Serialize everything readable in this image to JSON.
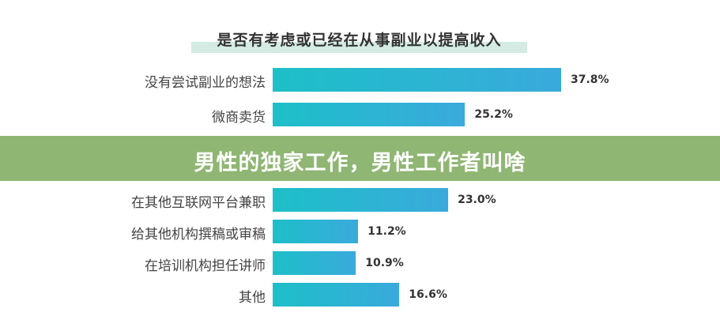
{
  "banner": {
    "text": "男性的独家工作，男性工作者叫啥",
    "color": "#80ac60"
  },
  "chart_data": {
    "type": "bar",
    "orientation": "horizontal",
    "title": "是否有考虑或已经在从事副业以提高收入",
    "categories": [
      "没有尝试副业的想法",
      "微商卖货",
      "在其他互联网平台兼职",
      "给其他机构撰稿或审稿",
      "在培训机构担任讲师",
      "其他"
    ],
    "values": [
      37.8,
      25.2,
      23.0,
      11.2,
      10.9,
      16.6
    ],
    "labels": [
      "37.8%",
      "25.2%",
      "23.0%",
      "11.2%",
      "10.9%",
      "16.6%"
    ],
    "unit": "%",
    "xlim": [
      0,
      37.8
    ],
    "bar_color": "#1dbfc8",
    "grid": false
  }
}
